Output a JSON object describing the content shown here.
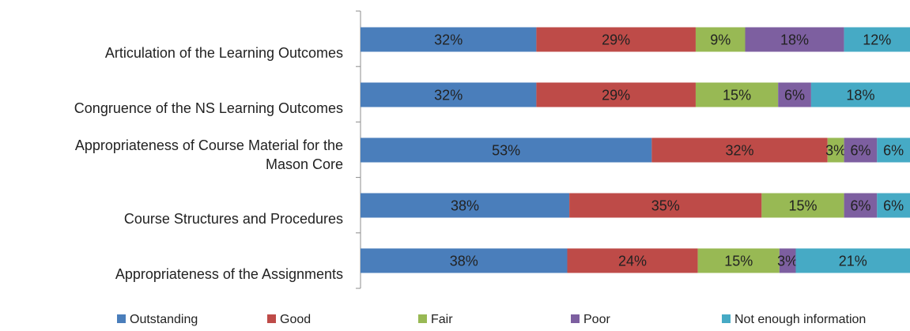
{
  "chart_data": {
    "type": "bar",
    "orientation": "horizontal",
    "stacked": true,
    "percent_stacked": true,
    "categories": [
      [
        "Articulation of the Learning Outcomes"
      ],
      [
        "Congruence of the NS Learning Outcomes"
      ],
      [
        "Appropriateness of Course Material for the",
        "Mason Core"
      ],
      [
        "Course Structures and Procedures"
      ],
      [
        "Appropriateness of the Assignments"
      ]
    ],
    "series": [
      {
        "name": "Outstanding",
        "color": "#4a7ebb",
        "values": [
          32,
          32,
          53,
          38,
          38
        ],
        "labels": [
          "32%",
          "32%",
          "53%",
          "38%",
          "38%"
        ]
      },
      {
        "name": "Good",
        "color": "#be4b48",
        "values": [
          29,
          29,
          32,
          35,
          24
        ],
        "labels": [
          "29%",
          "29%",
          "32%",
          "35%",
          "24%"
        ]
      },
      {
        "name": "Fair",
        "color": "#98b954",
        "values": [
          9,
          15,
          3,
          15,
          15
        ],
        "labels": [
          "9%",
          "15%",
          "3%",
          "15%",
          "15%"
        ]
      },
      {
        "name": "Poor",
        "color": "#7d5fa0",
        "values": [
          18,
          6,
          6,
          6,
          3
        ],
        "labels": [
          "18%",
          "6%",
          "6%",
          "6%",
          "3%"
        ]
      },
      {
        "name": "Not enough information",
        "color": "#46aac5",
        "values": [
          12,
          18,
          6,
          6,
          21
        ],
        "labels": [
          "12%",
          "18%",
          "6%",
          "6%",
          "21%"
        ]
      }
    ],
    "xlim": [
      0,
      100
    ],
    "grid": false,
    "legend_position": "bottom"
  }
}
